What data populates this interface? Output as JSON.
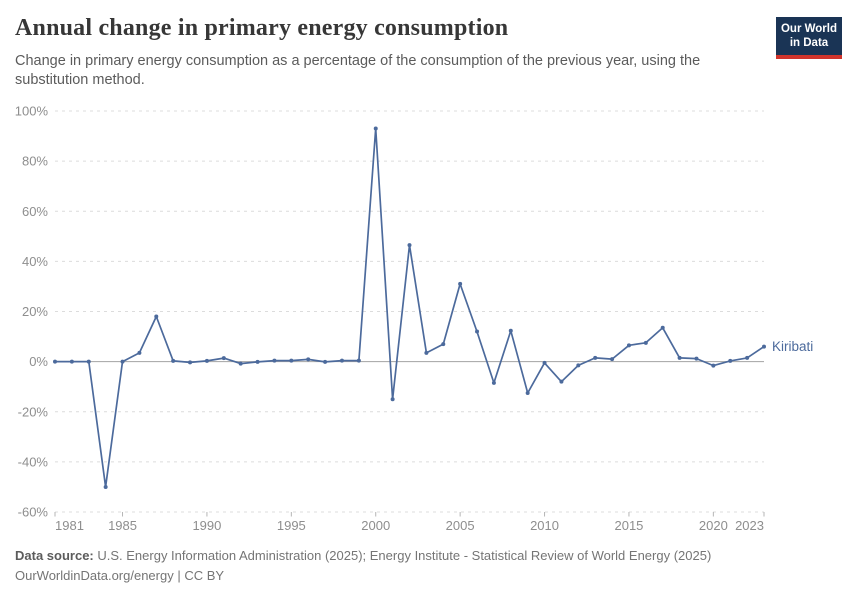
{
  "header": {
    "title": "Annual change in primary energy consumption",
    "subtitle": "Change in primary energy consumption as a percentage of the consumption of the previous year, using the substitution method.",
    "logo": {
      "line1": "Our World",
      "line2": "in Data",
      "bg_color": "#1a3455",
      "stripe_color": "#d1342c"
    }
  },
  "chart_data": {
    "type": "line",
    "title": "Annual change in primary energy consumption",
    "xlabel": "",
    "ylabel": "",
    "xlim": [
      1981,
      2023
    ],
    "ylim": [
      -60,
      100
    ],
    "yticks": [
      100,
      80,
      60,
      40,
      20,
      0,
      -20,
      -40,
      -60
    ],
    "ytick_suffix": "%",
    "xticks": [
      1981,
      1985,
      1990,
      1995,
      2000,
      2005,
      2010,
      2015,
      2020,
      2023
    ],
    "grid": "horizontal-dashed",
    "zero_line": true,
    "legend_position": "end-of-line-label",
    "x": [
      1981,
      1982,
      1983,
      1984,
      1985,
      1986,
      1987,
      1988,
      1989,
      1990,
      1991,
      1992,
      1993,
      1994,
      1995,
      1996,
      1997,
      1998,
      1999,
      2000,
      2001,
      2002,
      2003,
      2004,
      2005,
      2006,
      2007,
      2008,
      2009,
      2010,
      2011,
      2012,
      2013,
      2014,
      2015,
      2016,
      2017,
      2018,
      2019,
      2020,
      2021,
      2022,
      2023
    ],
    "series": [
      {
        "name": "Kiribati",
        "color": "#4C6A9C",
        "values": [
          0,
          0,
          0,
          -50,
          0,
          3.5,
          18,
          0.3,
          -0.3,
          0.3,
          1.4,
          -0.8,
          -0.1,
          0.4,
          0.4,
          0.9,
          -0.1,
          0.4,
          0.4,
          93,
          -15,
          46.5,
          3.5,
          7,
          31,
          12,
          -8.5,
          12.3,
          -12.5,
          -0.5,
          -8,
          -1.5,
          1.5,
          1,
          6.5,
          7.5,
          13.5,
          1.5,
          1.2,
          -1.6,
          0.3,
          1.5,
          6
        ]
      }
    ],
    "style": {
      "grid_color": "#dcdcdc",
      "zero_line_color": "#a3a3a3",
      "tick_color": "#b5b5b5",
      "tick_label_color": "#8e8e8e"
    }
  },
  "footer": {
    "source_label": "Data source:",
    "source_text": " U.S. Energy Information Administration (2025); Energy Institute - Statistical Review of World Energy (2025)",
    "license_text": "OurWorldinData.org/energy | CC BY"
  }
}
